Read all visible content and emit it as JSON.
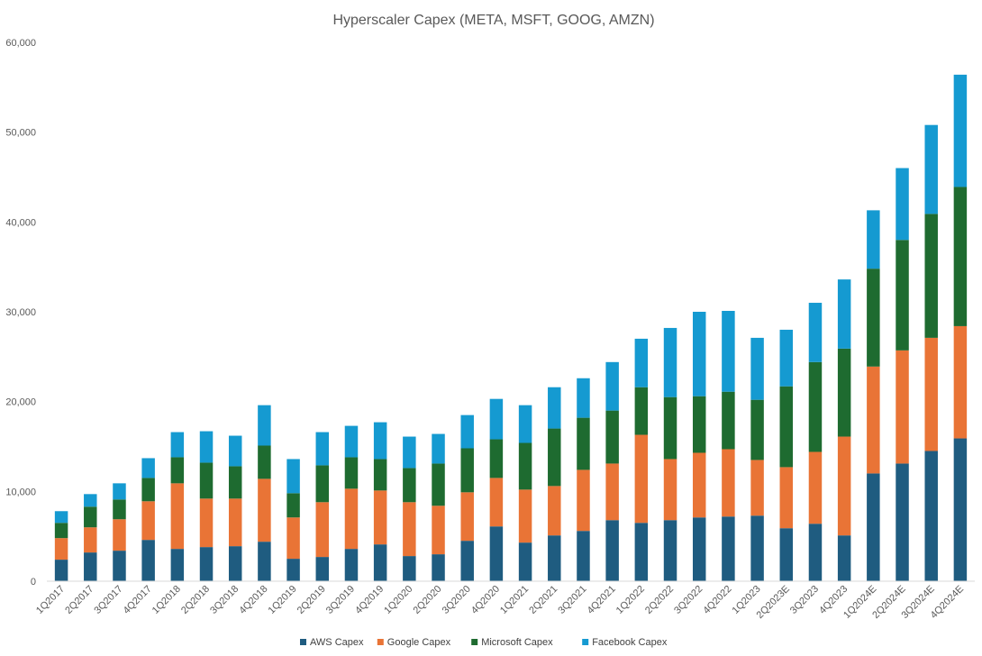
{
  "chart_data": {
    "type": "bar",
    "stacked": true,
    "title": "Hyperscaler Capex (META, MSFT, GOOG, AMZN)",
    "xlabel": "",
    "ylabel": "",
    "ylim": [
      0,
      60000
    ],
    "yticks": [
      0,
      10000,
      20000,
      30000,
      40000,
      50000,
      60000
    ],
    "ytick_labels": [
      "0",
      "10,000",
      "20,000",
      "30,000",
      "40,000",
      "50,000",
      "60,000"
    ],
    "grid": false,
    "legend_position": "bottom",
    "categories": [
      "1Q2017",
      "2Q2017",
      "3Q2017",
      "4Q2017",
      "1Q2018",
      "2Q2018",
      "3Q2018",
      "4Q2018",
      "1Q2019",
      "2Q2019",
      "3Q2019",
      "4Q2019",
      "1Q2020",
      "2Q2020",
      "3Q2020",
      "4Q2020",
      "1Q2021",
      "2Q2021",
      "3Q2021",
      "4Q2021",
      "1Q2022",
      "2Q2022",
      "3Q2022",
      "4Q2022",
      "1Q2023",
      "2Q2023E",
      "3Q2023",
      "4Q2023",
      "1Q2024E",
      "2Q2024E",
      "3Q2024E",
      "4Q2024E"
    ],
    "series": [
      {
        "name": "AWS Capex",
        "color": "#1f5c80",
        "values": [
          2400,
          3200,
          3400,
          4600,
          3600,
          3800,
          3900,
          4400,
          2500,
          2700,
          3600,
          4100,
          2800,
          3000,
          4500,
          6100,
          4300,
          5100,
          5600,
          6800,
          6500,
          6800,
          7100,
          7200,
          7300,
          5900,
          6400,
          5100,
          12000,
          13100,
          14500,
          15900
        ]
      },
      {
        "name": "Google Capex",
        "color": "#e97436",
        "values": [
          2400,
          2800,
          3500,
          4300,
          7300,
          5400,
          5300,
          7000,
          4600,
          6100,
          6700,
          6000,
          6000,
          5400,
          5400,
          5400,
          5900,
          5500,
          6800,
          6300,
          9800,
          6800,
          7200,
          7500,
          6200,
          6800,
          8000,
          11000,
          11900,
          12600,
          12600,
          12500
        ]
      },
      {
        "name": "Microsoft Capex",
        "color": "#1e6b30",
        "values": [
          1700,
          2300,
          2200,
          2600,
          2900,
          4000,
          3600,
          3700,
          2700,
          4100,
          3500,
          3500,
          3800,
          4700,
          4900,
          4300,
          5200,
          6400,
          5800,
          5900,
          5300,
          6900,
          6300,
          6400,
          6700,
          9000,
          10000,
          9800,
          10900,
          12300,
          13800,
          15500
        ]
      },
      {
        "name": "Facebook Capex",
        "color": "#159ad1",
        "values": [
          1300,
          1400,
          1800,
          2200,
          2800,
          3500,
          3400,
          4500,
          3800,
          3700,
          3500,
          4100,
          3500,
          3300,
          3700,
          4500,
          4200,
          4600,
          4400,
          5400,
          5400,
          7700,
          9400,
          9000,
          6900,
          6300,
          6600,
          7700,
          6500,
          8000,
          9900,
          12500
        ]
      }
    ]
  }
}
